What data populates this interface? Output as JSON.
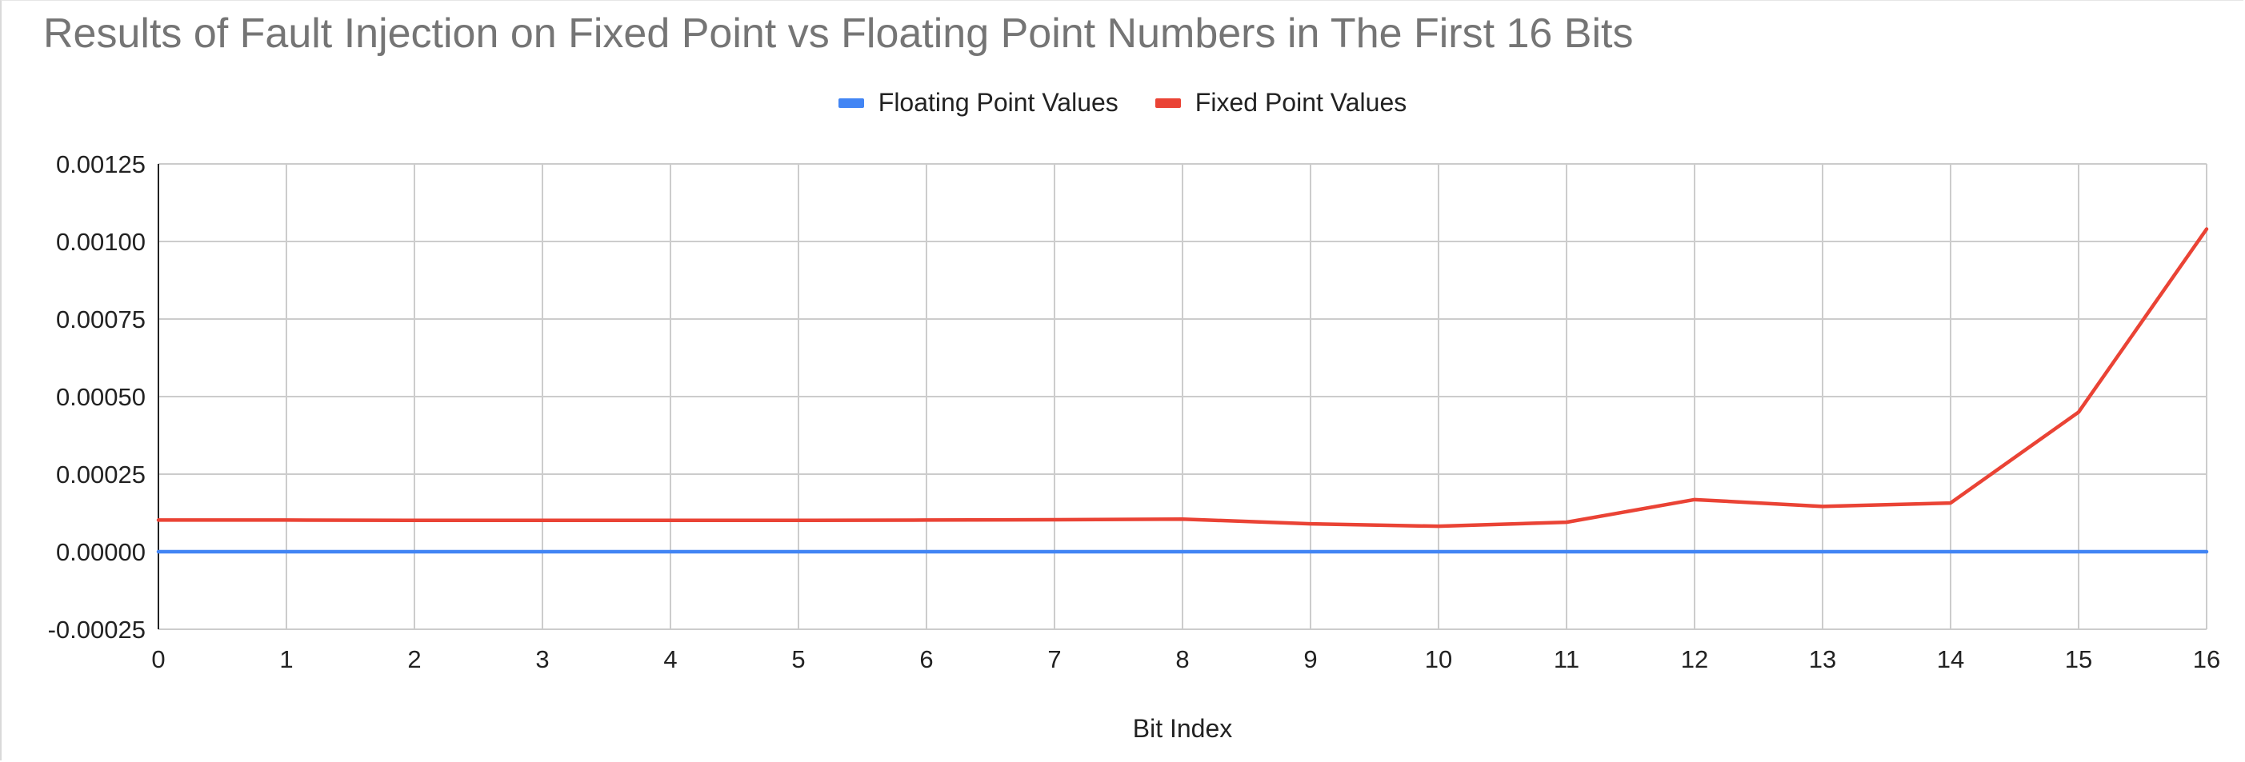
{
  "chart_data": {
    "type": "line",
    "title": "Results of Fault Injection on Fixed Point vs Floating Point Numbers in The First 16 Bits",
    "xlabel": "Bit Index",
    "ylabel": "",
    "x": [
      0,
      1,
      2,
      3,
      4,
      5,
      6,
      7,
      8,
      9,
      10,
      11,
      12,
      13,
      14,
      15,
      16
    ],
    "x_tick_labels": [
      "0",
      "1",
      "2",
      "3",
      "4",
      "5",
      "6",
      "7",
      "8",
      "9",
      "10",
      "11",
      "12",
      "13",
      "14",
      "15",
      "16"
    ],
    "y_tick_values": [
      -0.00025,
      0,
      0.00025,
      0.0005,
      0.00075,
      0.001,
      0.00125
    ],
    "y_tick_labels": [
      "-0.00025",
      "0.00000",
      "0.00025",
      "0.00050",
      "0.00075",
      "0.00100",
      "0.00125"
    ],
    "xlim": [
      0,
      16
    ],
    "ylim": [
      -0.00025,
      0.00125
    ],
    "grid": true,
    "legend_position": "top",
    "series": [
      {
        "name": "Floating Point Values",
        "color": "#4285f4",
        "values": [
          0,
          0,
          0,
          0,
          0,
          0,
          0,
          0,
          0,
          0,
          0,
          0,
          0,
          0,
          0,
          0,
          0
        ]
      },
      {
        "name": "Fixed Point Values",
        "color": "#ea4335",
        "values": [
          0.000102,
          0.000102,
          0.000101,
          0.000101,
          0.000101,
          0.000101,
          0.000102,
          0.000103,
          0.000105,
          9e-05,
          8.2e-05,
          9.5e-05,
          0.000168,
          0.000146,
          0.000157,
          0.00045,
          0.00104
        ]
      }
    ]
  }
}
